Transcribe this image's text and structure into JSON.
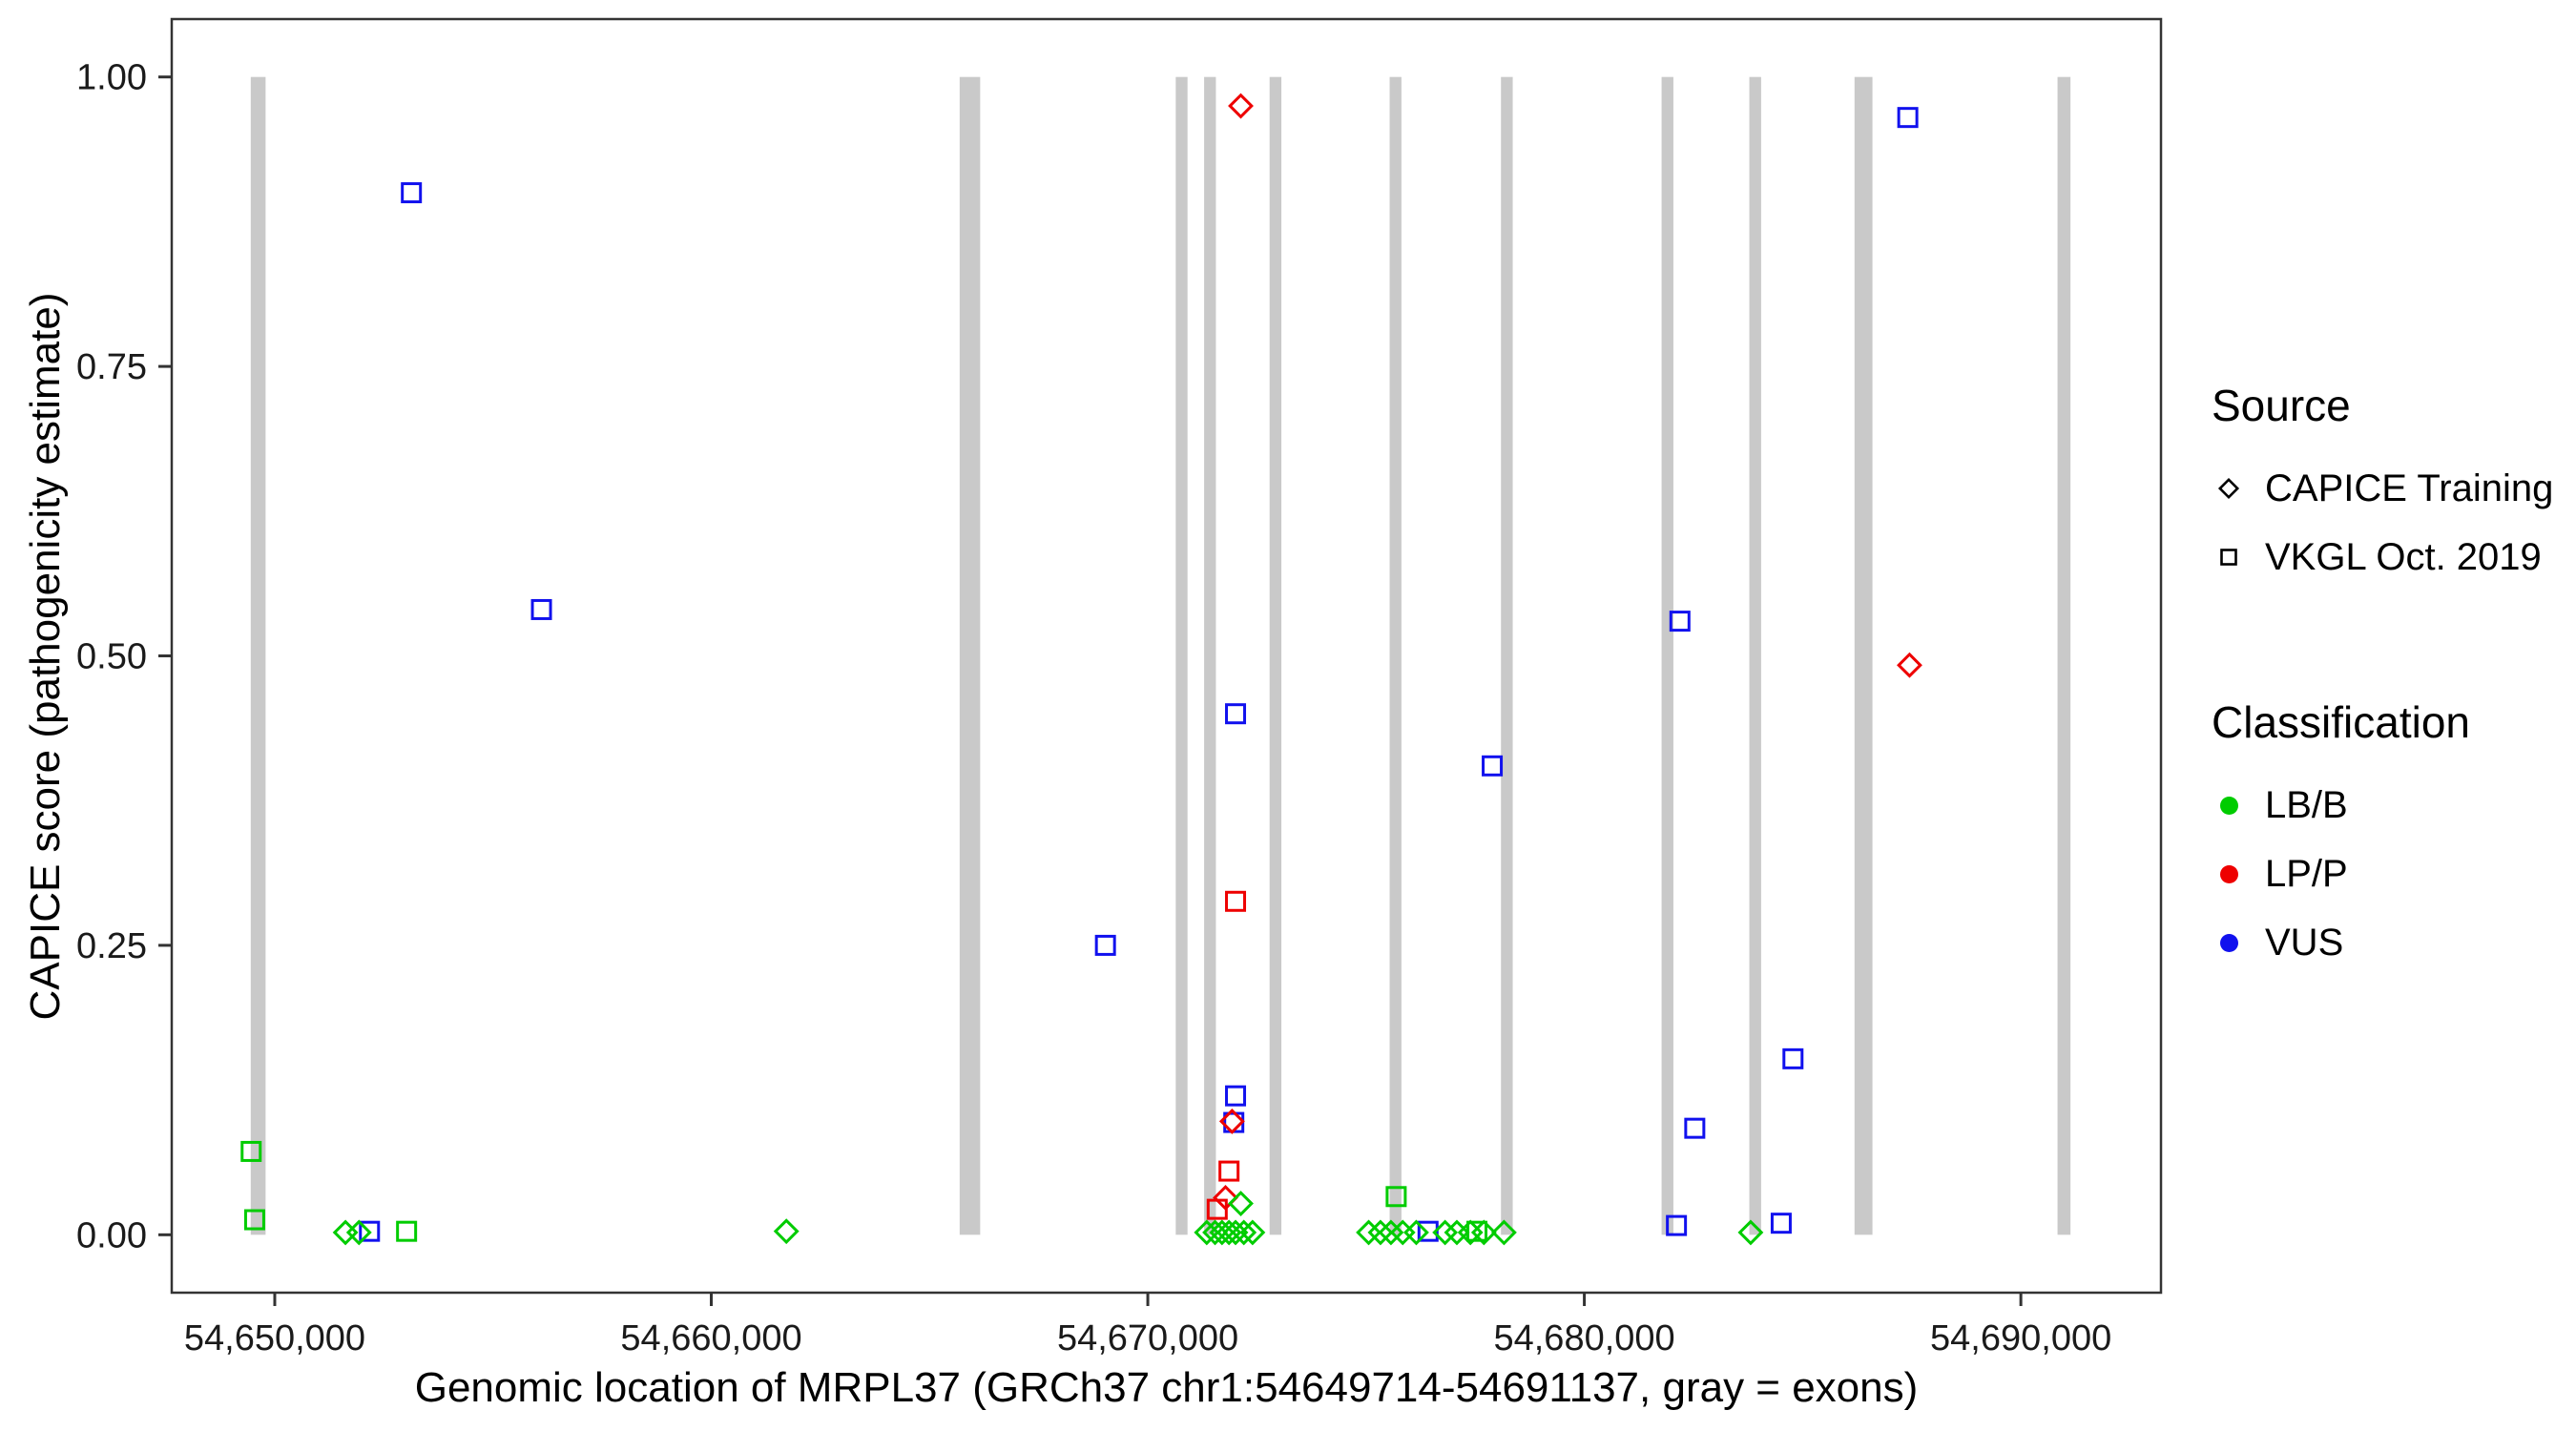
{
  "legend": {
    "source": {
      "title": "Source",
      "items": [
        {
          "label": "CAPICE Training",
          "shape": "diamond"
        },
        {
          "label": "VKGL Oct. 2019",
          "shape": "square"
        }
      ]
    },
    "classification": {
      "title": "Classification",
      "items": [
        {
          "label": "LB/B",
          "color": "#00CC00"
        },
        {
          "label": "LP/P",
          "color": "#EE0000"
        },
        {
          "label": "VUS",
          "color": "#1111EE"
        }
      ]
    }
  },
  "chart_data": {
    "type": "scatter",
    "title": "",
    "xlabel": "Genomic location of MRPL37 (GRCh37 chr1:54649714-54691137, gray = exons)",
    "ylabel": "CAPICE score (pathogenicity estimate)",
    "xlim": [
      54647640,
      54693210
    ],
    "ylim": [
      -0.05,
      1.05
    ],
    "grid": false,
    "legend_position": "right",
    "x_ticks": [
      {
        "value": 54650000,
        "label": "54,650,000"
      },
      {
        "value": 54660000,
        "label": "54,660,000"
      },
      {
        "value": 54670000,
        "label": "54,670,000"
      },
      {
        "value": 54680000,
        "label": "54,680,000"
      },
      {
        "value": 54690000,
        "label": "54,690,000"
      }
    ],
    "y_ticks": [
      {
        "value": 0.0,
        "label": "0.00"
      },
      {
        "value": 0.25,
        "label": "0.25"
      },
      {
        "value": 0.5,
        "label": "0.50"
      },
      {
        "value": 0.75,
        "label": "0.75"
      },
      {
        "value": 1.0,
        "label": "1.00"
      }
    ],
    "exon_color": "#C9C9C9",
    "exons": [
      [
        54649450,
        54649790
      ],
      [
        54665690,
        54666160
      ],
      [
        54670640,
        54670910
      ],
      [
        54671290,
        54671560
      ],
      [
        54672790,
        54673060
      ],
      [
        54675540,
        54675810
      ],
      [
        54678090,
        54678360
      ],
      [
        54681770,
        54682040
      ],
      [
        54683780,
        54684050
      ],
      [
        54686190,
        54686600
      ],
      [
        54690840,
        54691137
      ]
    ],
    "classification_colors": {
      "LB/B": "#00CC00",
      "LP/P": "#EE0000",
      "VUS": "#1111EE"
    },
    "source_shapes": {
      "CAPICE Training": "diamond",
      "VKGL Oct. 2019": "square"
    },
    "points": [
      {
        "x": 54653130,
        "y": 0.9,
        "source": "VKGL Oct. 2019",
        "classification": "VUS"
      },
      {
        "x": 54656110,
        "y": 0.54,
        "source": "VKGL Oct. 2019",
        "classification": "VUS"
      },
      {
        "x": 54669030,
        "y": 0.25,
        "source": "VKGL Oct. 2019",
        "classification": "VUS"
      },
      {
        "x": 54672010,
        "y": 0.45,
        "source": "VKGL Oct. 2019",
        "classification": "VUS"
      },
      {
        "x": 54672010,
        "y": 0.12,
        "source": "VKGL Oct. 2019",
        "classification": "VUS"
      },
      {
        "x": 54671970,
        "y": 0.097,
        "source": "VKGL Oct. 2019",
        "classification": "VUS"
      },
      {
        "x": 54677890,
        "y": 0.405,
        "source": "VKGL Oct. 2019",
        "classification": "VUS"
      },
      {
        "x": 54682190,
        "y": 0.53,
        "source": "VKGL Oct. 2019",
        "classification": "VUS"
      },
      {
        "x": 54682530,
        "y": 0.092,
        "source": "VKGL Oct. 2019",
        "classification": "VUS"
      },
      {
        "x": 54684780,
        "y": 0.152,
        "source": "VKGL Oct. 2019",
        "classification": "VUS"
      },
      {
        "x": 54682110,
        "y": 0.008,
        "source": "VKGL Oct. 2019",
        "classification": "VUS"
      },
      {
        "x": 54684510,
        "y": 0.01,
        "source": "VKGL Oct. 2019",
        "classification": "VUS"
      },
      {
        "x": 54687410,
        "y": 0.965,
        "source": "VKGL Oct. 2019",
        "classification": "VUS"
      },
      {
        "x": 54652170,
        "y": 0.003,
        "source": "VKGL Oct. 2019",
        "classification": "VUS"
      },
      {
        "x": 54676420,
        "y": 0.003,
        "source": "VKGL Oct. 2019",
        "classification": "VUS"
      },
      {
        "x": 54672010,
        "y": 0.288,
        "source": "VKGL Oct. 2019",
        "classification": "LP/P"
      },
      {
        "x": 54671860,
        "y": 0.055,
        "source": "VKGL Oct. 2019",
        "classification": "LP/P"
      },
      {
        "x": 54671590,
        "y": 0.022,
        "source": "VKGL Oct. 2019",
        "classification": "LP/P"
      },
      {
        "x": 54672130,
        "y": 0.975,
        "source": "CAPICE Training",
        "classification": "LP/P"
      },
      {
        "x": 54687450,
        "y": 0.492,
        "source": "CAPICE Training",
        "classification": "LP/P"
      },
      {
        "x": 54671930,
        "y": 0.098,
        "source": "CAPICE Training",
        "classification": "LP/P"
      },
      {
        "x": 54671780,
        "y": 0.032,
        "source": "CAPICE Training",
        "classification": "LP/P"
      },
      {
        "x": 54649460,
        "y": 0.072,
        "source": "VKGL Oct. 2019",
        "classification": "LB/B"
      },
      {
        "x": 54649540,
        "y": 0.013,
        "source": "VKGL Oct. 2019",
        "classification": "LB/B"
      },
      {
        "x": 54653020,
        "y": 0.003,
        "source": "VKGL Oct. 2019",
        "classification": "LB/B"
      },
      {
        "x": 54675690,
        "y": 0.033,
        "source": "VKGL Oct. 2019",
        "classification": "LB/B"
      },
      {
        "x": 54677540,
        "y": 0.003,
        "source": "VKGL Oct. 2019",
        "classification": "LB/B"
      },
      {
        "x": 54651620,
        "y": 0.002,
        "source": "CAPICE Training",
        "classification": "LB/B"
      },
      {
        "x": 54651930,
        "y": 0.002,
        "source": "CAPICE Training",
        "classification": "LB/B"
      },
      {
        "x": 54661720,
        "y": 0.003,
        "source": "CAPICE Training",
        "classification": "LB/B"
      },
      {
        "x": 54672130,
        "y": 0.027,
        "source": "CAPICE Training",
        "classification": "LB/B"
      },
      {
        "x": 54671350,
        "y": 0.002,
        "source": "CAPICE Training",
        "classification": "LB/B"
      },
      {
        "x": 54671540,
        "y": 0.002,
        "source": "CAPICE Training",
        "classification": "LB/B"
      },
      {
        "x": 54671700,
        "y": 0.002,
        "source": "CAPICE Training",
        "classification": "LB/B"
      },
      {
        "x": 54671860,
        "y": 0.002,
        "source": "CAPICE Training",
        "classification": "LB/B"
      },
      {
        "x": 54672010,
        "y": 0.002,
        "source": "CAPICE Training",
        "classification": "LB/B"
      },
      {
        "x": 54672200,
        "y": 0.002,
        "source": "CAPICE Training",
        "classification": "LB/B"
      },
      {
        "x": 54672400,
        "y": 0.002,
        "source": "CAPICE Training",
        "classification": "LB/B"
      },
      {
        "x": 54675060,
        "y": 0.002,
        "source": "CAPICE Training",
        "classification": "LB/B"
      },
      {
        "x": 54675330,
        "y": 0.002,
        "source": "CAPICE Training",
        "classification": "LB/B"
      },
      {
        "x": 54675570,
        "y": 0.002,
        "source": "CAPICE Training",
        "classification": "LB/B"
      },
      {
        "x": 54675840,
        "y": 0.002,
        "source": "CAPICE Training",
        "classification": "LB/B"
      },
      {
        "x": 54676150,
        "y": 0.002,
        "source": "CAPICE Training",
        "classification": "LB/B"
      },
      {
        "x": 54676810,
        "y": 0.002,
        "source": "CAPICE Training",
        "classification": "LB/B"
      },
      {
        "x": 54677080,
        "y": 0.002,
        "source": "CAPICE Training",
        "classification": "LB/B"
      },
      {
        "x": 54677390,
        "y": 0.002,
        "source": "CAPICE Training",
        "classification": "LB/B"
      },
      {
        "x": 54677700,
        "y": 0.002,
        "source": "CAPICE Training",
        "classification": "LB/B"
      },
      {
        "x": 54678160,
        "y": 0.002,
        "source": "CAPICE Training",
        "classification": "LB/B"
      },
      {
        "x": 54683810,
        "y": 0.002,
        "source": "CAPICE Training",
        "classification": "LB/B"
      }
    ]
  }
}
